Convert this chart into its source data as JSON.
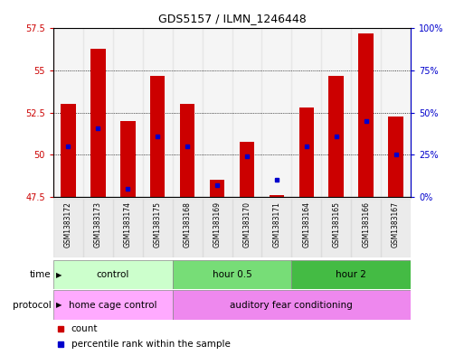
{
  "title": "GDS5157 / ILMN_1246448",
  "samples": [
    "GSM1383172",
    "GSM1383173",
    "GSM1383174",
    "GSM1383175",
    "GSM1383168",
    "GSM1383169",
    "GSM1383170",
    "GSM1383171",
    "GSM1383164",
    "GSM1383165",
    "GSM1383166",
    "GSM1383167"
  ],
  "counts": [
    53.0,
    56.3,
    52.0,
    54.7,
    53.0,
    48.5,
    50.8,
    47.6,
    52.8,
    54.7,
    57.2,
    52.3
  ],
  "percentiles": [
    30,
    41,
    5,
    36,
    30,
    7,
    24,
    10,
    30,
    36,
    45,
    25
  ],
  "ylim_left": [
    47.5,
    57.5
  ],
  "ylim_right": [
    0,
    100
  ],
  "yticks_left": [
    47.5,
    50.0,
    52.5,
    55.0,
    57.5
  ],
  "ytick_labels_left": [
    "47.5",
    "50",
    "52.5",
    "55",
    "57.5"
  ],
  "yticks_right": [
    0,
    25,
    50,
    75,
    100
  ],
  "ytick_labels_right": [
    "0%",
    "25%",
    "50%",
    "75%",
    "100%"
  ],
  "bar_color": "#cc0000",
  "dot_color": "#0000cc",
  "bar_bottom": 47.5,
  "time_groups": [
    {
      "label": "control",
      "start": 0,
      "end": 4,
      "color": "#ccffcc"
    },
    {
      "label": "hour 0.5",
      "start": 4,
      "end": 8,
      "color": "#77dd77"
    },
    {
      "label": "hour 2",
      "start": 8,
      "end": 12,
      "color": "#44bb44"
    }
  ],
  "protocol_groups": [
    {
      "label": "home cage control",
      "start": 0,
      "end": 4,
      "color": "#ffaaff"
    },
    {
      "label": "auditory fear conditioning",
      "start": 4,
      "end": 12,
      "color": "#ee88ee"
    }
  ],
  "time_label": "time",
  "protocol_label": "protocol",
  "legend_count": "count",
  "legend_percentile": "percentile rank within the sample"
}
